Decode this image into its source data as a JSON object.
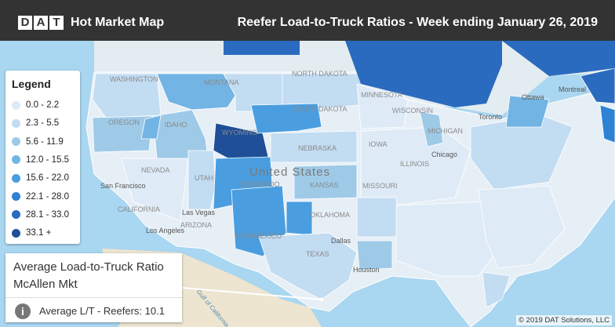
{
  "header": {
    "logo_letters": [
      "D",
      "A",
      "T"
    ],
    "app_title": "Hot Market Map",
    "report_title": "Reefer Load-to-Truck Ratios - Week ending January 26, 2019"
  },
  "legend": {
    "title": "Legend",
    "items": [
      {
        "label": "0.0 - 2.2",
        "color": "#deebf7"
      },
      {
        "label": "2.3 - 5.5",
        "color": "#c2dcf2"
      },
      {
        "label": "5.6 - 11.9",
        "color": "#9ecae8"
      },
      {
        "label": "12.0 - 15.5",
        "color": "#72b4e4"
      },
      {
        "label": "15.6 - 22.0",
        "color": "#4a9ee0"
      },
      {
        "label": "22.1 - 28.0",
        "color": "#2d82d4"
      },
      {
        "label": "28.1 - 33.0",
        "color": "#2a6bbf"
      },
      {
        "label": "33.1 +",
        "color": "#1e4f98"
      }
    ]
  },
  "map_labels": {
    "country": "United States",
    "states": [
      "WASHINGTON",
      "OREGON",
      "IDAHO",
      "MONTANA",
      "WYOMING",
      "NEVADA",
      "UTAH",
      "COLORADO",
      "CALIFORNIA",
      "ARIZONA",
      "NEW MEXICO",
      "NORTH DAKOTA",
      "SOUTH DAKOTA",
      "NEBRASKA",
      "KANSAS",
      "OKLAHOMA",
      "TEXAS",
      "MINNESOTA",
      "WISCONSIN",
      "MICHIGAN",
      "IOWA",
      "MISSOURI",
      "ILLINOIS"
    ],
    "cities": [
      "San Francisco",
      "Las Vegas",
      "Los Angeles",
      "Dallas",
      "Houston",
      "Chicago",
      "Toronto",
      "Ottawa",
      "Montreal"
    ],
    "sea": "Gulf of California"
  },
  "info_panel": {
    "title": "Average Load-to-Truck Ratio",
    "market": "McAllen Mkt",
    "icon": "i",
    "value_text": "Average L/T - Reefers: 10.1"
  },
  "copyright": "© 2019 DAT Solutions, LLC"
}
